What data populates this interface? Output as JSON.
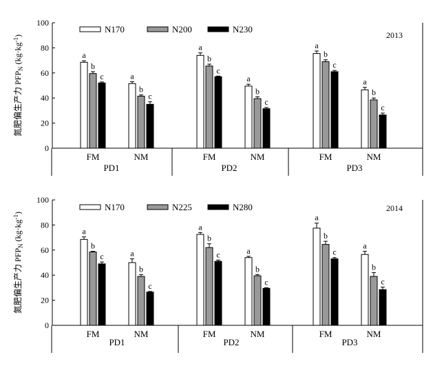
{
  "chart_data": [
    {
      "type": "bar",
      "year": "2013",
      "ylabel": "氮肥偏生产力 PFP",
      "ylabel_sub": "N",
      "ylabel_unit": " (kg·kg",
      "ylabel_sup": "-1",
      "ylabel_end": ")",
      "ylim": [
        0,
        100
      ],
      "yticks": [
        "0",
        "20",
        "40",
        "60",
        "80",
        "100"
      ],
      "legend_placement": "top-left",
      "colors": [
        "#ffffff",
        "#999999",
        "#000000"
      ],
      "series": [
        {
          "name": "N170",
          "values": [
            68.5,
            51.5,
            74.0,
            49.5,
            75.5,
            46.5
          ],
          "errors": [
            1.2,
            1.5,
            2.0,
            1.5,
            2.0,
            2.0
          ],
          "letters": [
            "a",
            "a",
            "a",
            "a",
            "a",
            "a"
          ]
        },
        {
          "name": "N200",
          "values": [
            59.5,
            41.5,
            65.5,
            39.5,
            69.0,
            38.5
          ],
          "errors": [
            1.5,
            1.0,
            1.5,
            1.5,
            1.5,
            1.5
          ],
          "letters": [
            "b",
            "b",
            "b",
            "b",
            "b",
            "b"
          ]
        },
        {
          "name": "N230",
          "values": [
            52.0,
            35.0,
            57.0,
            31.5,
            61.0,
            26.5
          ],
          "errors": [
            0.8,
            2.0,
            0.5,
            1.0,
            1.0,
            1.5
          ],
          "letters": [
            "c",
            "c",
            "c",
            "c",
            "c",
            "c"
          ]
        }
      ],
      "groups": [
        {
          "pd": "PD1",
          "cats": [
            "FM",
            "NM"
          ]
        },
        {
          "pd": "PD2",
          "cats": [
            "FM",
            "NM"
          ]
        },
        {
          "pd": "PD3",
          "cats": [
            "FM",
            "NM"
          ]
        }
      ]
    },
    {
      "type": "bar",
      "year": "2014",
      "ylabel": "氮肥偏生产力 PFP",
      "ylabel_sub": "N",
      "ylabel_unit": " (kg·kg",
      "ylabel_sup": "-1",
      "ylabel_end": ")",
      "ylim": [
        0,
        100
      ],
      "yticks": [
        "0",
        "20",
        "40",
        "60",
        "80",
        "100"
      ],
      "legend_placement": "top-left",
      "colors": [
        "#ffffff",
        "#999999",
        "#000000"
      ],
      "series": [
        {
          "name": "N170",
          "values": [
            68.5,
            50.0,
            72.5,
            54.0,
            77.5,
            56.5
          ],
          "errors": [
            2.0,
            3.0,
            1.5,
            1.0,
            4.0,
            2.5
          ],
          "letters": [
            "a",
            "a",
            "a",
            "a",
            "a",
            "a"
          ]
        },
        {
          "name": "N225",
          "values": [
            58.5,
            39.0,
            62.0,
            39.5,
            64.5,
            39.0
          ],
          "errors": [
            0.5,
            1.5,
            3.0,
            1.0,
            2.5,
            3.0
          ],
          "letters": [
            "b",
            "b",
            "b",
            "b",
            "b",
            "b"
          ]
        },
        {
          "name": "N280",
          "values": [
            49.0,
            26.5,
            51.0,
            29.5,
            53.0,
            28.5
          ],
          "errors": [
            1.5,
            0.5,
            1.0,
            0.5,
            1.0,
            2.0
          ],
          "letters": [
            "c",
            "c",
            "c",
            "c",
            "c",
            "c"
          ]
        }
      ],
      "groups": [
        {
          "pd": "PD1",
          "cats": [
            "FM",
            "NM"
          ]
        },
        {
          "pd": "PD2",
          "cats": [
            "FM",
            "NM"
          ]
        },
        {
          "pd": "PD3",
          "cats": [
            "FM",
            "NM"
          ]
        }
      ]
    }
  ]
}
